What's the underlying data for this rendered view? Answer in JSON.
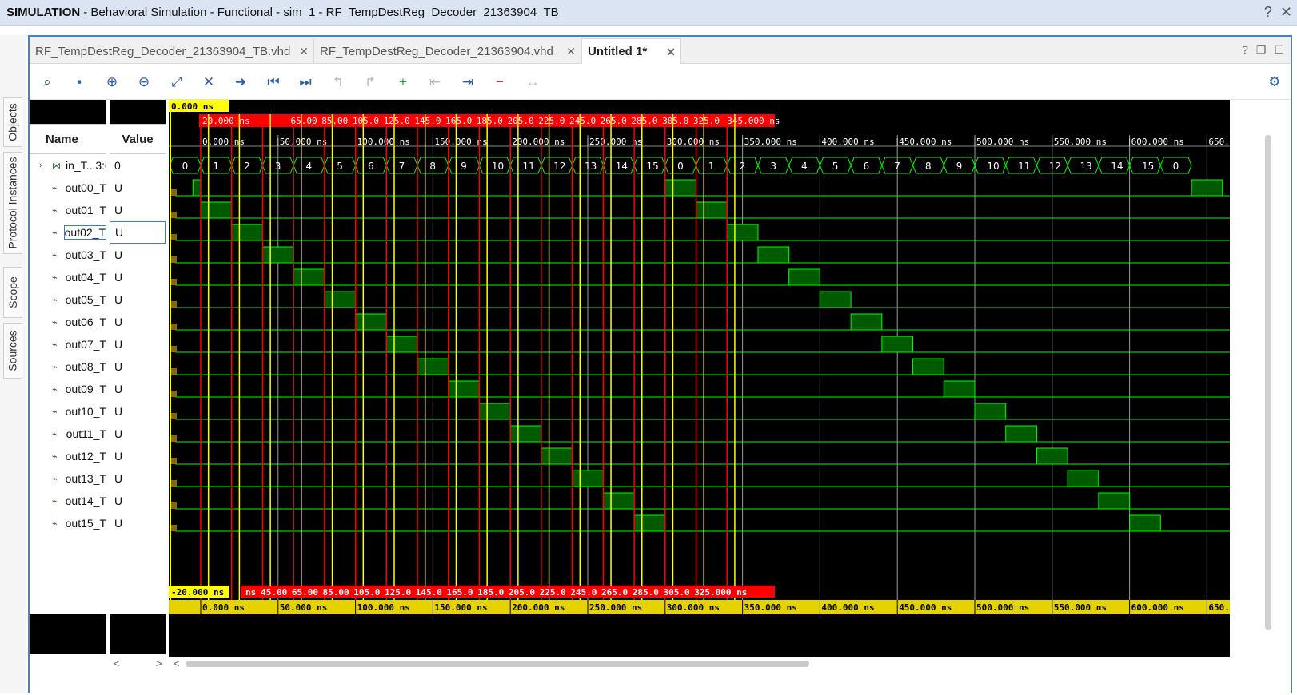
{
  "title": {
    "mode": "SIMULATION",
    "rest": "- Behavioral Simulation - Functional - sim_1 - RF_TempDestReg_Decoder_21363904_TB",
    "help": "?",
    "close": "✕"
  },
  "side_tabs": [
    "Objects",
    "Protocol Instances",
    "Scope",
    "Sources"
  ],
  "tabs": [
    {
      "label": "RF_TempDestReg_Decoder_21363904_TB.vhd",
      "active": false
    },
    {
      "label": "RF_TempDestReg_Decoder_21363904.vhd",
      "active": false
    },
    {
      "label": "Untitled 1*",
      "active": true
    }
  ],
  "toolbar": [
    "search-icon",
    "save-icon",
    "zoom-in-icon",
    "zoom-out-icon",
    "zoom-fit-icon",
    "cursor-snap-icon",
    "go-to-cursor-icon",
    "go-to-start-icon",
    "go-to-end-icon",
    "previous-transition-icon",
    "next-transition-icon",
    "add-marker-icon",
    "previous-marker-icon",
    "next-marker-icon",
    "delete-marker-icon",
    "swap-cursors-icon",
    "settings-icon"
  ],
  "columns": {
    "name": "Name",
    "value": "Value"
  },
  "signals": [
    {
      "name": "in_T...3:0",
      "value": "0",
      "bus": true
    },
    {
      "name": "out00_T",
      "value": "U"
    },
    {
      "name": "out01_T",
      "value": "U"
    },
    {
      "name": "out02_T",
      "value": "U"
    },
    {
      "name": "out03_T",
      "value": "U"
    },
    {
      "name": "out04_T",
      "value": "U"
    },
    {
      "name": "out05_T",
      "value": "U"
    },
    {
      "name": "out06_T",
      "value": "U"
    },
    {
      "name": "out07_T",
      "value": "U"
    },
    {
      "name": "out08_T",
      "value": "U"
    },
    {
      "name": "out09_T",
      "value": "U"
    },
    {
      "name": "out10_T",
      "value": "U"
    },
    {
      "name": "out11_T",
      "value": "U"
    },
    {
      "name": "out12_T",
      "value": "U"
    },
    {
      "name": "out13_T",
      "value": "U"
    },
    {
      "name": "out14_T",
      "value": "U"
    },
    {
      "name": "out15_T",
      "value": "U"
    }
  ],
  "cursor_label": "0.000 ns",
  "delta_top": [
    "20.000 ns",
    "65.00",
    "85.00",
    "105.0",
    "125.0",
    "145.0",
    "165.0",
    "185.0",
    "205.0",
    "225.0",
    "245.0",
    "265.0",
    "285.0",
    "305.0",
    "325.0",
    "345.000 ns"
  ],
  "delta_bottom": [
    "-20.000 ns",
    "ns",
    "45.00",
    "65.00",
    "85.00",
    "105.0",
    "125.0",
    "145.0",
    "165.0",
    "185.0",
    "205.0",
    "225.0",
    "245.0",
    "265.0",
    "285.0",
    "305.0",
    "325.000 ns"
  ],
  "ruler_top": [
    "0.000 ns",
    "50.000 ns",
    "100.000 ns",
    "150.000 ns",
    "200.000 ns",
    "250.000 ns",
    "300.000 ns",
    "350.000 ns",
    "400.000 ns",
    "450.000 ns",
    "500.000 ns",
    "550.000 ns",
    "600.000 ns",
    "650.000 ns"
  ],
  "ruler_bottom": [
    "0.000 ns",
    "50.000 ns",
    "100.000 ns",
    "150.000 ns",
    "200.000 ns",
    "250.000 ns",
    "300.000 ns",
    "350.000 ns",
    "400.000 ns",
    "450.000 ns",
    "500.000 ns",
    "550.000 ns",
    "600.000 ns",
    "650."
  ],
  "bus_values": [
    "0",
    "1",
    "2",
    "3",
    "4",
    "5",
    "6",
    "7",
    "8",
    "9",
    "10",
    "11",
    "12",
    "13",
    "14",
    "15",
    "0",
    "1",
    "2",
    "3",
    "4",
    "5",
    "6",
    "7",
    "8",
    "9",
    "10",
    "11",
    "12",
    "13",
    "14",
    "15",
    "0"
  ],
  "colors": {
    "bg": "#000000",
    "signal": "#00ff00",
    "high_fill": "#005a00",
    "marker": "#ff0000",
    "cursor": "#ffff00",
    "bottom_ruler": "#e6d200"
  },
  "nav": {
    "left": "<",
    "right": ">"
  }
}
